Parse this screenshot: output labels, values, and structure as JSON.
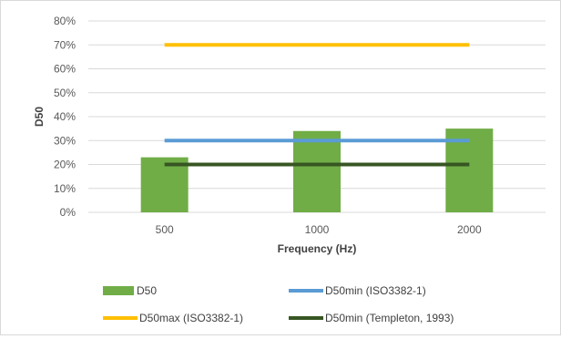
{
  "chart_data": {
    "type": "bar",
    "title": "",
    "xlabel": "Frequency (Hz)",
    "ylabel": "D50",
    "categories": [
      "500",
      "1000",
      "2000"
    ],
    "ylim": [
      0,
      0.8
    ],
    "yticks": [
      0,
      0.1,
      0.2,
      0.3,
      0.4,
      0.5,
      0.6,
      0.7,
      0.8
    ],
    "ytick_labels": [
      "0%",
      "10%",
      "20%",
      "30%",
      "40%",
      "50%",
      "60%",
      "70%",
      "80%"
    ],
    "grid": true,
    "legend_position": "bottom",
    "series": [
      {
        "name": "D50",
        "kind": "bar",
        "color": "#70ad47",
        "values": [
          0.23,
          0.34,
          0.35
        ]
      },
      {
        "name": "D50min (ISO3382-1)",
        "kind": "line",
        "color": "#5b9bd5",
        "values": [
          0.3,
          0.3,
          0.3
        ]
      },
      {
        "name": "D50max (ISO3382-1)",
        "kind": "line",
        "color": "#ffc000",
        "values": [
          0.7,
          0.7,
          0.7
        ]
      },
      {
        "name": "D50min (Templeton, 1993)",
        "kind": "line",
        "color": "#375623",
        "values": [
          0.2,
          0.2,
          0.2
        ]
      }
    ]
  }
}
